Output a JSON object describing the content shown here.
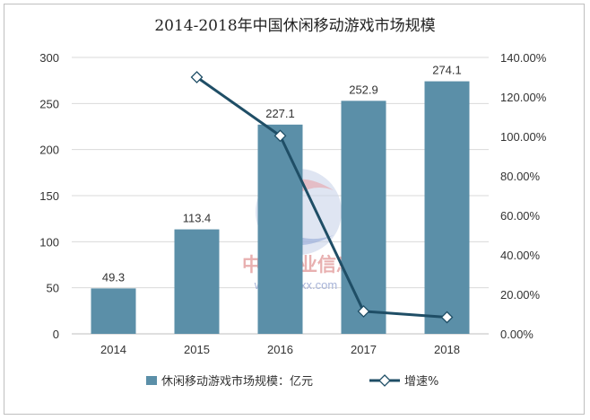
{
  "chart_data": {
    "type": "bar+line",
    "title": "2014-2018年中国休闲移动游戏市场规模",
    "categories": [
      "2014",
      "2015",
      "2016",
      "2017",
      "2018"
    ],
    "series": [
      {
        "name": "休闲移动游戏市场规模：亿元",
        "type": "bar",
        "axis": "left",
        "values": [
          49.3,
          113.4,
          227.1,
          252.9,
          274.1
        ],
        "labels": [
          "49.3",
          "113.4",
          "227.1",
          "252.9",
          "274.1"
        ],
        "color": "#5b8fa8"
      },
      {
        "name": "增速%",
        "type": "line",
        "axis": "right",
        "values": [
          null,
          130.0,
          100.3,
          11.4,
          8.4
        ],
        "color": "#1f4e66"
      }
    ],
    "y_left": {
      "min": 0,
      "max": 300,
      "ticks": [
        "0",
        "50",
        "100",
        "150",
        "200",
        "250",
        "300"
      ]
    },
    "y_right": {
      "min": 0,
      "max": 140,
      "ticks": [
        "0.00%",
        "20.00%",
        "40.00%",
        "60.00%",
        "80.00%",
        "100.00%",
        "120.00%",
        "140.00%"
      ]
    },
    "grid": true,
    "legend_position": "bottom"
  },
  "watermark": {
    "text": "中国产业信息",
    "url": "www.chyxx.com"
  }
}
